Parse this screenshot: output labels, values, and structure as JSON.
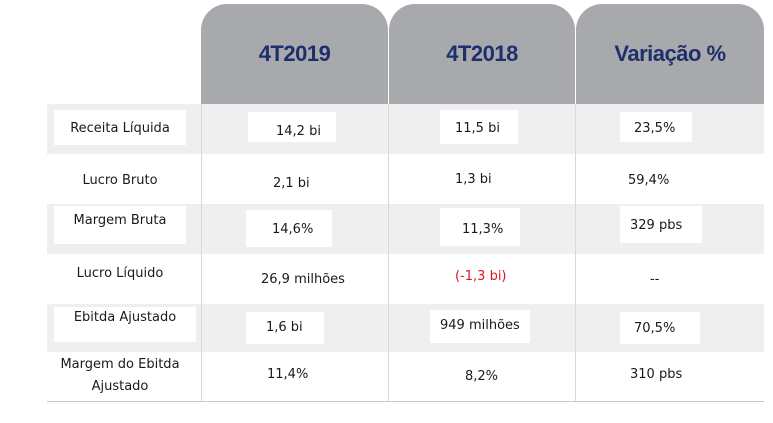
{
  "headers": [
    "4T2019",
    "4T2018",
    "Variação %"
  ],
  "rows": [
    {
      "label": "Receita Líquida",
      "v2019": "14,2 bi",
      "v2018": "11,5 bi",
      "var": "23,5%"
    },
    {
      "label": "Lucro Bruto",
      "v2019": "2,1 bi",
      "v2018": "1,3 bi",
      "var": "59,4%"
    },
    {
      "label": "Margem Bruta",
      "v2019": "14,6%",
      "v2018": "11,3%",
      "var": "329 pbs"
    },
    {
      "label": "Lucro Líquido",
      "v2019": "26,9 milhões",
      "v2018": "(-1,3 bi)",
      "var": "--"
    },
    {
      "label": "Ebitda Ajustado",
      "v2019": "1,6 bi",
      "v2018": "949 milhões",
      "var": "70,5%"
    },
    {
      "label_line1": "Margem do Ebitda",
      "label_line2": "Ajustado",
      "v2019": "11,4%",
      "v2018": "8,2%",
      "var": "310 pbs"
    }
  ],
  "colors": {
    "header_bg": "#a7a9ac",
    "header_text": "#1f2f6b",
    "row_shade": "#efeff0",
    "negative": "#e0141e"
  }
}
